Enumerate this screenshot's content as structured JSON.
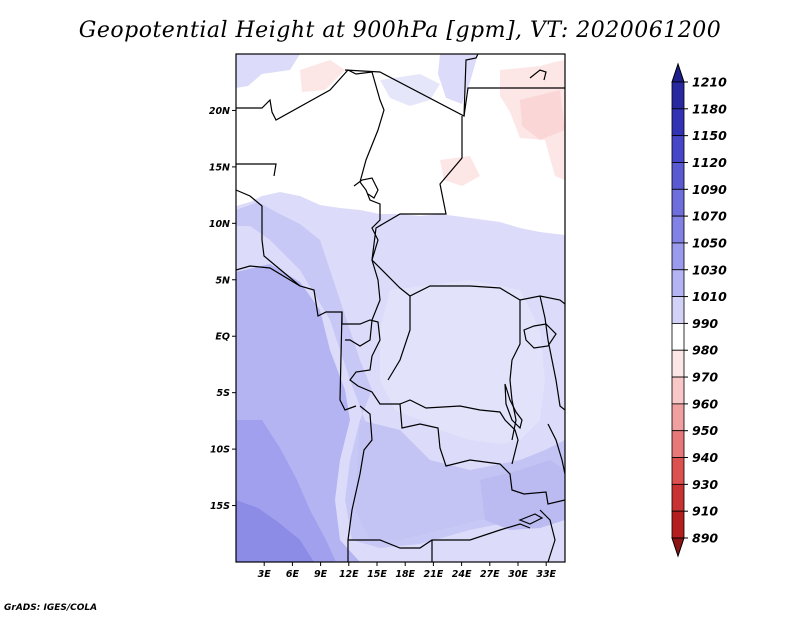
{
  "title": "Geopotential Height at 900hPa [gpm], VT: 2020061200",
  "credit": "GrADS: IGES/COLA",
  "lat_labels": [
    "20N",
    "15N",
    "10N",
    "5N",
    "EQ",
    "5S",
    "10S",
    "15S"
  ],
  "lat_values": [
    20,
    15,
    10,
    5,
    0,
    -5,
    -10,
    -15
  ],
  "lon_labels": [
    "3E",
    "6E",
    "9E",
    "12E",
    "15E",
    "18E",
    "21E",
    "24E",
    "27E",
    "30E",
    "33E"
  ],
  "lon_values": [
    3,
    6,
    9,
    12,
    15,
    18,
    21,
    24,
    27,
    30,
    33
  ],
  "extent": {
    "lon_min": 0,
    "lon_max": 35,
    "lat_min": -20,
    "lat_max": 25
  },
  "colorbar": {
    "labels": [
      "1210",
      "1180",
      "1150",
      "1120",
      "1090",
      "1070",
      "1050",
      "1030",
      "1010",
      "990",
      "980",
      "970",
      "960",
      "950",
      "940",
      "930",
      "910",
      "890"
    ],
    "colors": [
      "#1e1e8c",
      "#2828a0",
      "#3232b4",
      "#4646c8",
      "#5a5ad2",
      "#6e6edc",
      "#8282e6",
      "#9b9bee",
      "#b4b4f4",
      "#d2d2f8",
      "#ffffff",
      "#fde6e6",
      "#f8c8c8",
      "#f0a0a0",
      "#e67878",
      "#dc5050",
      "#c83232",
      "#b41e1e",
      "#8c1414"
    ]
  },
  "colors": {
    "frame": "#000000",
    "background": "#ffffff"
  }
}
